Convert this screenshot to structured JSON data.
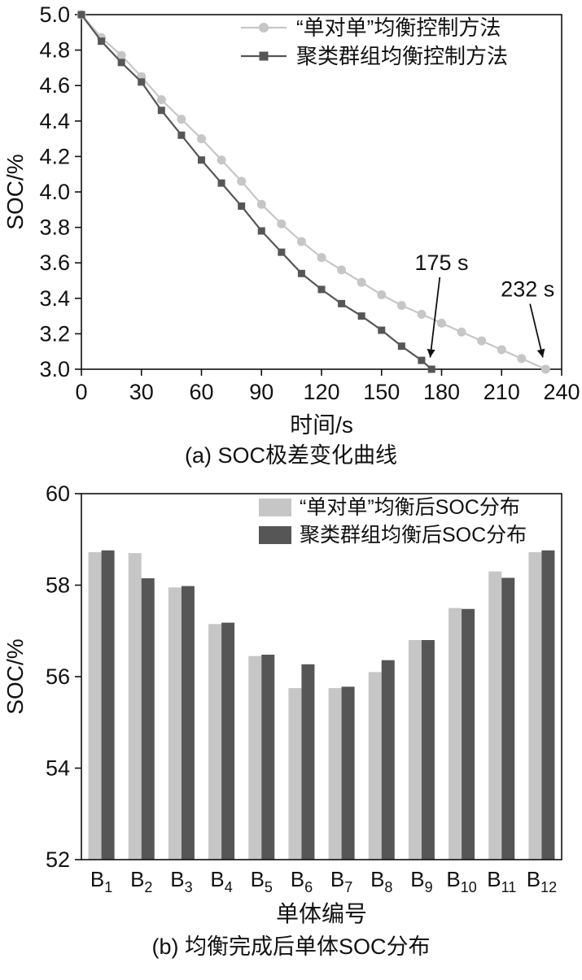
{
  "colors": {
    "background": "#ffffff",
    "axis": "#111111",
    "one_to_one_series": "#c6c6c6",
    "cluster_series": "#565656"
  },
  "chart_data": [
    {
      "type": "line",
      "title": "(a) SOC极差变化曲线",
      "xlabel": "时间/s",
      "ylabel": "SOC/%",
      "xlim": [
        0,
        240
      ],
      "ylim": [
        3.0,
        5.0
      ],
      "grid": false,
      "legend_position": "top-right-inside",
      "xticks": [
        0,
        30,
        60,
        90,
        120,
        150,
        180,
        210,
        240
      ],
      "xtick_labels": [
        "0",
        "30",
        "60",
        "90",
        "120",
        "150",
        "180",
        "210",
        "240"
      ],
      "yticks": [
        3.0,
        3.2,
        3.4,
        3.6,
        3.8,
        4.0,
        4.2,
        4.4,
        4.6,
        4.8,
        5.0
      ],
      "ytick_labels": [
        "3.0",
        "3.2",
        "3.4",
        "3.6",
        "3.8",
        "4.0",
        "4.2",
        "4.4",
        "4.6",
        "4.8",
        "5.0"
      ],
      "series": [
        {
          "name": "“单对单”均衡控制方法",
          "marker": "circle",
          "color": "#c6c6c6",
          "x": [
            0,
            10,
            20,
            30,
            40,
            50,
            60,
            70,
            80,
            90,
            100,
            110,
            120,
            130,
            140,
            150,
            160,
            170,
            180,
            190,
            200,
            210,
            220,
            232
          ],
          "y": [
            5.0,
            4.87,
            4.77,
            4.65,
            4.52,
            4.41,
            4.3,
            4.18,
            4.06,
            3.93,
            3.82,
            3.72,
            3.63,
            3.56,
            3.49,
            3.42,
            3.36,
            3.31,
            3.26,
            3.21,
            3.16,
            3.11,
            3.06,
            3.0
          ]
        },
        {
          "name": "聚类群组均衡控制方法",
          "marker": "square",
          "color": "#565656",
          "x": [
            0,
            10,
            20,
            30,
            40,
            50,
            60,
            70,
            80,
            90,
            100,
            110,
            120,
            130,
            140,
            150,
            160,
            170,
            175
          ],
          "y": [
            5.0,
            4.85,
            4.73,
            4.62,
            4.46,
            4.32,
            4.18,
            4.05,
            3.92,
            3.78,
            3.66,
            3.54,
            3.45,
            3.37,
            3.3,
            3.22,
            3.13,
            3.05,
            3.0
          ]
        }
      ],
      "annotations": [
        {
          "text": "175 s",
          "text_x": 180,
          "text_y": 3.56,
          "tip_x": 174,
          "tip_y": 3.03
        },
        {
          "text": "232 s",
          "text_x": 223,
          "text_y": 3.41,
          "tip_x": 231,
          "tip_y": 3.03
        }
      ]
    },
    {
      "type": "bar",
      "title": "(b) 均衡完成后单体SOC分布",
      "xlabel": "单体编号",
      "ylabel": "SOC/%",
      "ylim": [
        52,
        60
      ],
      "grid": false,
      "legend_position": "top-right-inside",
      "yticks": [
        52,
        54,
        56,
        58,
        60
      ],
      "ytick_labels": [
        "52",
        "54",
        "56",
        "58",
        "60"
      ],
      "categories": [
        {
          "base": "B",
          "sub": "1"
        },
        {
          "base": "B",
          "sub": "2"
        },
        {
          "base": "B",
          "sub": "3"
        },
        {
          "base": "B",
          "sub": "4"
        },
        {
          "base": "B",
          "sub": "5"
        },
        {
          "base": "B",
          "sub": "6"
        },
        {
          "base": "B",
          "sub": "7"
        },
        {
          "base": "B",
          "sub": "8"
        },
        {
          "base": "B",
          "sub": "9"
        },
        {
          "base": "B",
          "sub": "10"
        },
        {
          "base": "B",
          "sub": "11"
        },
        {
          "base": "B",
          "sub": "12"
        }
      ],
      "series": [
        {
          "name": "“单对单”均衡后SOC分布",
          "color": "#c6c6c6",
          "values": [
            58.72,
            58.7,
            57.95,
            57.15,
            56.45,
            55.75,
            55.75,
            56.1,
            56.8,
            57.5,
            58.3,
            58.72
          ]
        },
        {
          "name": "聚类群组均衡后SOC分布",
          "color": "#565656",
          "values": [
            58.76,
            58.15,
            57.98,
            57.18,
            56.48,
            56.27,
            55.78,
            56.36,
            56.8,
            57.48,
            58.16,
            58.76
          ]
        }
      ]
    }
  ]
}
